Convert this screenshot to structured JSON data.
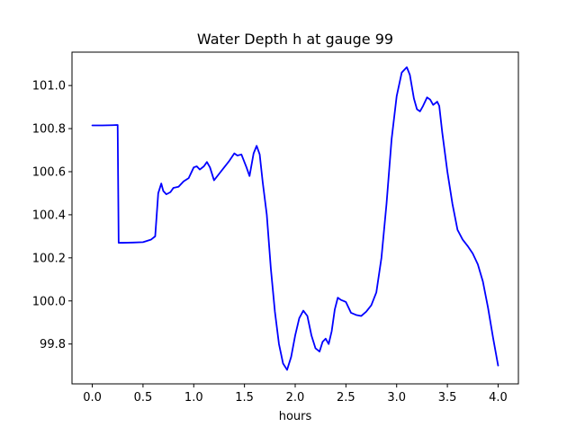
{
  "chart_data": {
    "type": "line",
    "title": "Water Depth h at gauge 99",
    "xlabel": "hours",
    "ylabel": "",
    "xlim": [
      -0.2,
      4.2
    ],
    "ylim": [
      99.615,
      101.155
    ],
    "x_ticks": [
      0.0,
      0.5,
      1.0,
      1.5,
      2.0,
      2.5,
      3.0,
      3.5,
      4.0
    ],
    "x_tick_labels": [
      "0.0",
      "0.5",
      "1.0",
      "1.5",
      "2.0",
      "2.5",
      "3.0",
      "3.5",
      "4.0"
    ],
    "y_ticks": [
      99.8,
      100.0,
      100.2,
      100.4,
      100.6,
      100.8,
      101.0
    ],
    "y_tick_labels": [
      "99.8",
      "100.0",
      "100.2",
      "100.4",
      "100.6",
      "100.8",
      "101.0"
    ],
    "grid": false,
    "legend": "none",
    "colors": {
      "series": "#0000ff",
      "axes": "#000000",
      "background": "#ffffff"
    },
    "series": [
      {
        "x": [
          0.0,
          0.1,
          0.2,
          0.25,
          0.26,
          0.3,
          0.4,
          0.5,
          0.58,
          0.62,
          0.65,
          0.68,
          0.7,
          0.73,
          0.77,
          0.8,
          0.85,
          0.9,
          0.95,
          1.0,
          1.03,
          1.06,
          1.1,
          1.13,
          1.16,
          1.2,
          1.25,
          1.3,
          1.35,
          1.4,
          1.43,
          1.47,
          1.52,
          1.55,
          1.59,
          1.62,
          1.65,
          1.68,
          1.72,
          1.76,
          1.8,
          1.84,
          1.88,
          1.92,
          1.96,
          2.0,
          2.04,
          2.08,
          2.12,
          2.16,
          2.2,
          2.24,
          2.27,
          2.3,
          2.33,
          2.36,
          2.39,
          2.42,
          2.45,
          2.5,
          2.55,
          2.6,
          2.65,
          2.7,
          2.75,
          2.8,
          2.85,
          2.9,
          2.95,
          3.0,
          3.05,
          3.1,
          3.13,
          3.17,
          3.2,
          3.23,
          3.26,
          3.3,
          3.33,
          3.36,
          3.4,
          3.42,
          3.45,
          3.5,
          3.55,
          3.6,
          3.65,
          3.7,
          3.75,
          3.8,
          3.85,
          3.9,
          3.95,
          4.0
        ],
        "y": [
          100.815,
          100.815,
          100.816,
          100.817,
          100.27,
          100.27,
          100.271,
          100.273,
          100.285,
          100.3,
          100.5,
          100.545,
          100.51,
          100.495,
          100.505,
          100.525,
          100.53,
          100.555,
          100.57,
          100.62,
          100.625,
          100.61,
          100.625,
          100.645,
          100.62,
          100.56,
          100.59,
          100.62,
          100.65,
          100.685,
          100.675,
          100.68,
          100.62,
          100.58,
          100.685,
          100.72,
          100.68,
          100.55,
          100.4,
          100.15,
          99.95,
          99.8,
          99.71,
          99.68,
          99.74,
          99.84,
          99.92,
          99.955,
          99.93,
          99.84,
          99.78,
          99.765,
          99.81,
          99.825,
          99.8,
          99.86,
          99.96,
          100.015,
          100.005,
          99.995,
          99.945,
          99.935,
          99.93,
          99.95,
          99.98,
          100.04,
          100.2,
          100.45,
          100.75,
          100.95,
          101.06,
          101.085,
          101.05,
          100.94,
          100.89,
          100.88,
          100.905,
          100.945,
          100.935,
          100.91,
          100.925,
          100.905,
          100.78,
          100.6,
          100.45,
          100.33,
          100.285,
          100.255,
          100.22,
          100.17,
          100.09,
          99.97,
          99.83,
          99.7
        ]
      }
    ]
  }
}
